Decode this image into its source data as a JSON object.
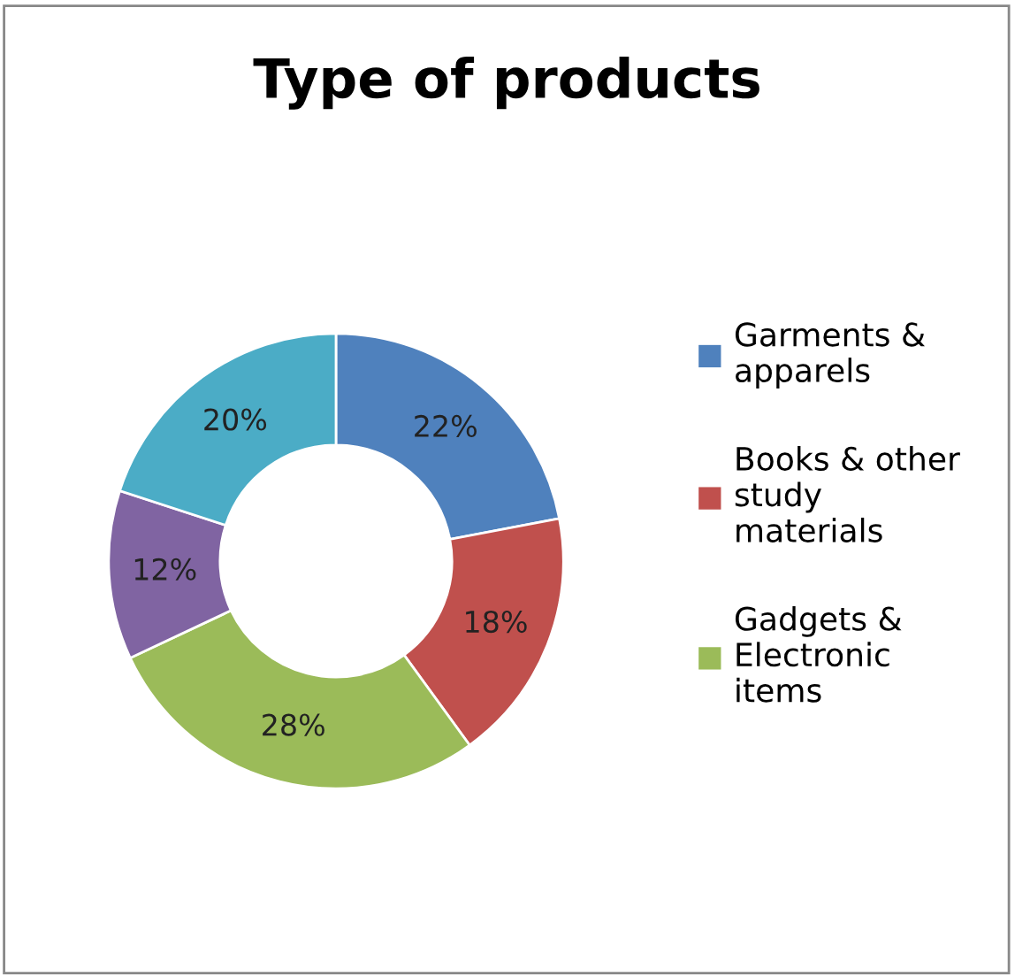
{
  "chart_data": {
    "type": "donut",
    "title": "Type of products",
    "categories": [
      "Garments &\napparels",
      "Books & other\nstudy\nmaterials",
      "Gadgets &\nElectronic\nitems",
      null,
      null
    ],
    "values": [
      22,
      18,
      28,
      12,
      20
    ],
    "colors": [
      "#4f81bd",
      "#c0504d",
      "#9bbb59",
      "#8064a2",
      "#4bacc6"
    ],
    "value_labels": [
      "22%",
      "18%",
      "28%",
      "12%",
      "20%"
    ],
    "legend": "right"
  }
}
